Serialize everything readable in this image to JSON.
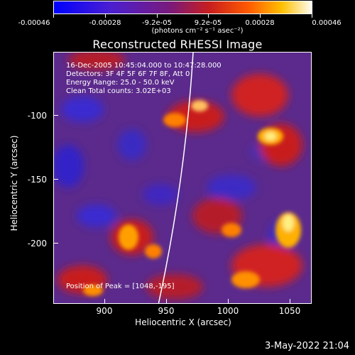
{
  "colorbar": {
    "tick_labels": [
      "-0.00046",
      "-0.00028",
      "-9.2e-05",
      "9.2e-05",
      "0.00028",
      "0.00046"
    ],
    "units": "(photons cm⁻² s⁻¹ asec⁻²)",
    "colors": [
      "#0000ff",
      "#8a2be2",
      "#b22222",
      "#ff4500",
      "#ffa500",
      "#ffff80",
      "#ffffff"
    ]
  },
  "plot": {
    "title": "Reconstructed RHESSI Image",
    "annotations": {
      "time": "16-Dec-2005 10:45:04.000 to 10:47:28.000",
      "detectors": "Detectors: 3F 4F 5F 6F 7F 8F, Att 0",
      "energy": "Energy Range: 25.0 - 50.0 keV",
      "method": "Clean     Total counts: 3.02E+03",
      "peak": "Position of Peak = [1048,-195]"
    },
    "xlabel": "Heliocentric X (arcsec)",
    "ylabel": "Heliocentric Y (arcsec)",
    "xticks": [
      "900",
      "950",
      "1000",
      "1050"
    ],
    "yticks": [
      "-100",
      "-150",
      "-200"
    ]
  },
  "footer": {
    "date": "3-May-2022 21:04"
  }
}
